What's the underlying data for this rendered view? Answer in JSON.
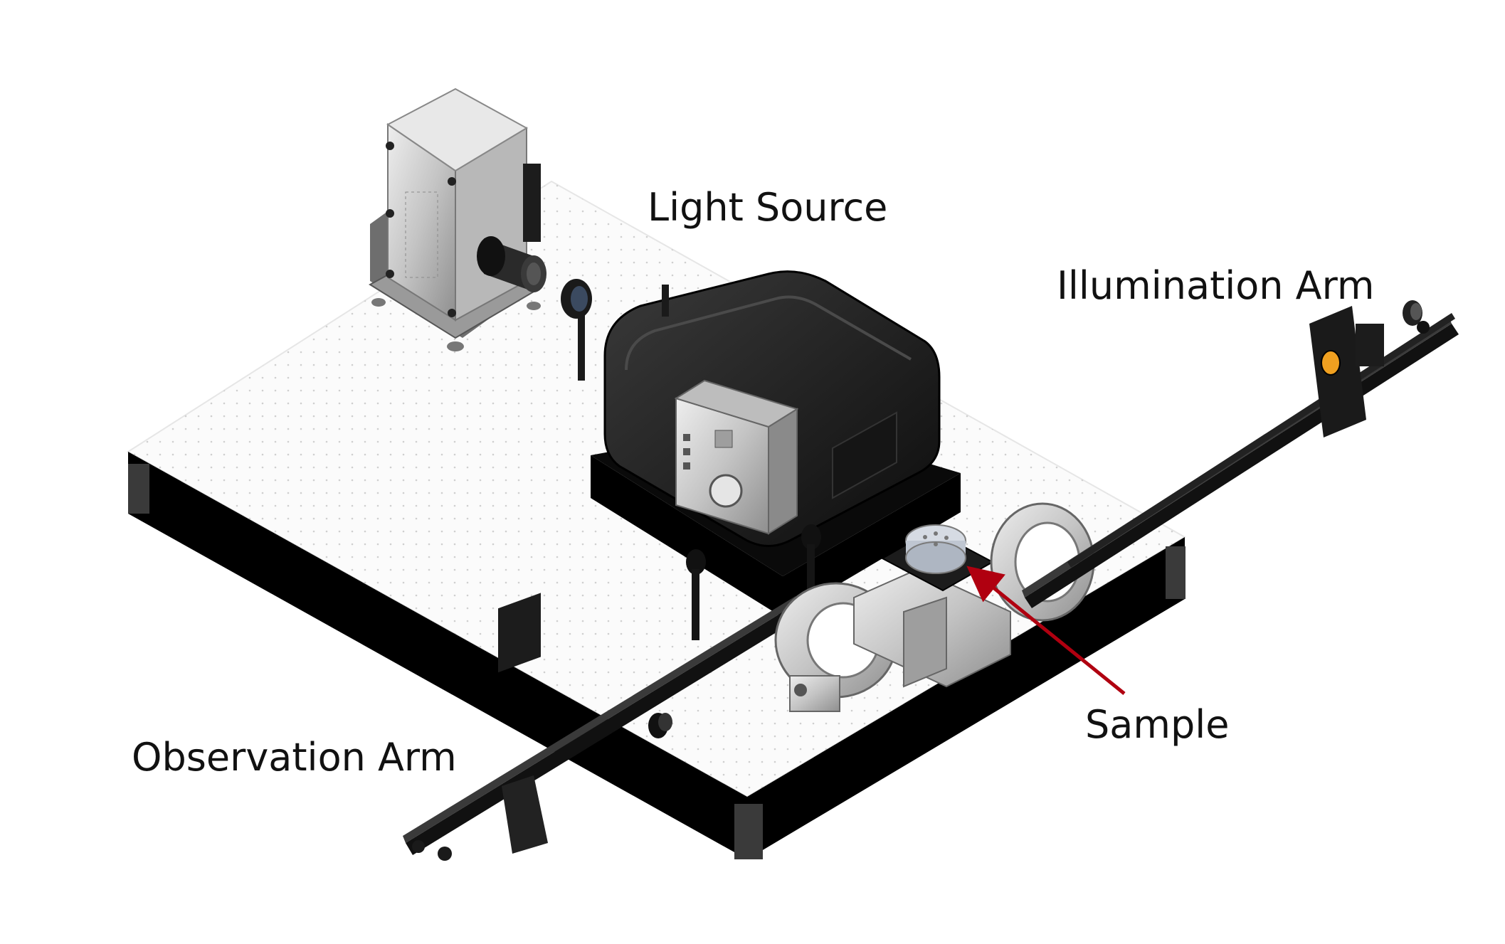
{
  "labels": {
    "light_source": "Light Source",
    "illumination_arm": "Illumination Arm",
    "sample": "Sample",
    "observation_arm": "Observation Arm"
  },
  "colors": {
    "table_top": "#fafafa",
    "table_side": "#000000",
    "rail": "#111111",
    "housing_dark": "#1c1c1c",
    "aluminum": "#cfcfcf",
    "arrow": "#b00010",
    "filter_amber": "#f0a020"
  }
}
